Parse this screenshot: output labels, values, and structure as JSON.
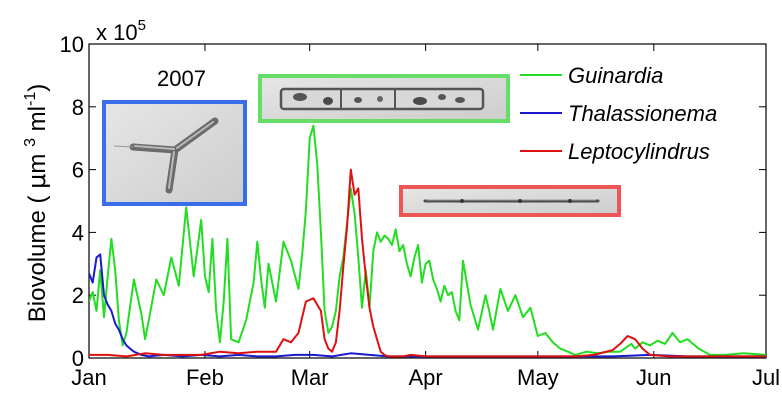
{
  "chart_data": {
    "type": "line",
    "title": "",
    "year_label": "2007",
    "xlabel": "",
    "ylabel_main": "Biovolume ( ",
    "ylabel_mu": "μ",
    "ylabel_m": "m ",
    "ylabel_exp3": "3",
    "ylabel_ml": " ml",
    "ylabel_expm1": "-1",
    "ylabel_close": ")",
    "y_multiplier": "x 10",
    "y_multiplier_exp": "5",
    "x_range_days": [
      0,
      181
    ],
    "ylim": [
      0,
      10
    ],
    "x_tick_labels": [
      "Jan",
      "Feb",
      "Mar",
      "Apr",
      "May",
      "Jun",
      "Jul"
    ],
    "x_tick_days": [
      0,
      31,
      59,
      90,
      120,
      151,
      181
    ],
    "y_ticks": [
      0,
      2,
      4,
      6,
      8,
      10
    ],
    "y_tick_labels": [
      "0",
      "2",
      "4",
      "6",
      "8",
      "10"
    ],
    "legend_position": "top-right",
    "series": [
      {
        "name": "Guinardia",
        "color": "#22dd22",
        "image_frame_color": "#66dd66",
        "x": [
          0,
          1,
          2,
          3,
          4,
          5,
          6,
          7,
          8,
          9,
          10,
          12,
          14,
          15,
          16,
          18,
          20,
          22,
          24,
          26,
          28,
          29,
          30,
          31,
          32,
          33,
          34,
          35,
          36,
          37,
          38,
          40,
          42,
          44,
          45,
          46,
          47,
          48,
          50,
          52,
          54,
          56,
          57,
          58,
          59,
          60,
          61,
          62,
          63,
          64,
          65,
          66,
          67,
          68,
          69,
          70,
          71,
          72,
          73,
          74,
          75,
          76,
          77,
          78,
          79,
          80,
          81,
          82,
          83,
          84,
          85,
          86,
          87,
          88,
          89,
          90,
          91,
          92,
          93,
          94,
          95,
          96,
          97,
          98,
          99,
          100,
          102,
          104,
          106,
          107,
          108,
          110,
          112,
          114,
          116,
          118,
          120,
          122,
          124,
          126,
          128,
          130,
          133,
          136,
          139,
          142,
          145,
          146,
          148,
          150,
          152,
          154,
          156,
          158,
          160,
          163,
          166,
          170,
          175,
          181
        ],
        "y": [
          1.8,
          2.1,
          1.5,
          2.8,
          1.3,
          2.6,
          3.8,
          2.8,
          1.2,
          0.4,
          0.8,
          2.5,
          1.4,
          0.6,
          1.2,
          2.5,
          2.0,
          3.2,
          2.3,
          4.8,
          2.6,
          3.5,
          4.4,
          2.6,
          2.1,
          3.8,
          1.5,
          0.5,
          1.8,
          3.8,
          0.6,
          0.5,
          1.2,
          2.4,
          3.7,
          2.5,
          1.6,
          3.0,
          1.8,
          3.7,
          3.1,
          2.2,
          3.3,
          4.7,
          7.0,
          7.4,
          6.2,
          4.0,
          1.5,
          0.8,
          1.0,
          1.5,
          2.6,
          3.2,
          4.3,
          5.4,
          4.6,
          3.2,
          1.6,
          2.8,
          1.6,
          3.4,
          4.0,
          3.7,
          3.9,
          3.8,
          3.6,
          4.1,
          3.4,
          3.6,
          3.0,
          2.6,
          3.2,
          3.6,
          2.4,
          3.0,
          3.1,
          2.5,
          2.2,
          1.8,
          2.3,
          2.0,
          2.1,
          1.5,
          1.2,
          3.1,
          1.7,
          0.9,
          2.0,
          1.5,
          0.9,
          2.2,
          1.5,
          2.0,
          1.3,
          1.6,
          0.7,
          0.8,
          0.5,
          0.3,
          0.2,
          0.1,
          0.2,
          0.15,
          0.2,
          0.2,
          0.45,
          0.3,
          0.5,
          0.4,
          0.55,
          0.45,
          0.8,
          0.5,
          0.6,
          0.3,
          0.1,
          0.1,
          0.15,
          0.1
        ]
      },
      {
        "name": "Thalassionema",
        "color": "#1a1acc",
        "image_frame_color": "#3a6ee8",
        "x": [
          0,
          1,
          2,
          3,
          4,
          5,
          6,
          7,
          8,
          9,
          10,
          11,
          12,
          14,
          16,
          20,
          25,
          30,
          35,
          40,
          45,
          50,
          55,
          60,
          65,
          70,
          75,
          80,
          90,
          100,
          110,
          120,
          130,
          140,
          150,
          160,
          170,
          181
        ],
        "y": [
          2.7,
          2.4,
          3.2,
          3.3,
          2.0,
          1.7,
          1.5,
          1.1,
          0.9,
          0.6,
          0.4,
          0.3,
          0.2,
          0.1,
          0.05,
          0.1,
          0.05,
          0.1,
          0.05,
          0.1,
          0.05,
          0.05,
          0.1,
          0.1,
          0.05,
          0.15,
          0.1,
          0.05,
          0.05,
          0.05,
          0.05,
          0.05,
          0.05,
          0.05,
          0.1,
          0.05,
          0.05,
          0.05
        ]
      },
      {
        "name": "Leptocylindrus",
        "color": "#dd1111",
        "image_frame_color": "#ee5555",
        "x": [
          0,
          5,
          10,
          15,
          20,
          25,
          30,
          35,
          40,
          45,
          50,
          52,
          54,
          56,
          58,
          60,
          62,
          63,
          64,
          65,
          66,
          67,
          68,
          69,
          70,
          71,
          72,
          73,
          74,
          75,
          76,
          77,
          78,
          79,
          80,
          82,
          84,
          86,
          90,
          100,
          110,
          120,
          130,
          135,
          140,
          142,
          144,
          145,
          146,
          148,
          150,
          155,
          160,
          170,
          181
        ],
        "y": [
          0.1,
          0.1,
          0.05,
          0.15,
          0.1,
          0.1,
          0.1,
          0.2,
          0.15,
          0.2,
          0.2,
          0.6,
          0.5,
          0.8,
          1.8,
          1.9,
          1.5,
          0.6,
          0.3,
          0.2,
          0.5,
          1.5,
          2.9,
          4.2,
          6.0,
          5.2,
          5.4,
          3.8,
          2.6,
          1.6,
          1.0,
          0.6,
          0.2,
          0.1,
          0.05,
          0.05,
          0.05,
          0.1,
          0.05,
          0.05,
          0.05,
          0.05,
          0.05,
          0.1,
          0.25,
          0.45,
          0.7,
          0.65,
          0.6,
          0.3,
          0.1,
          0.05,
          0.05,
          0.05,
          0.05
        ]
      }
    ]
  }
}
